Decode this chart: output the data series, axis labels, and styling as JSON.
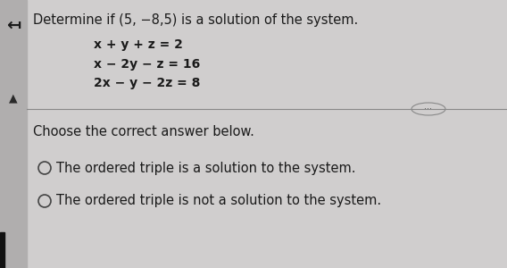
{
  "bg_color": "#d0cece",
  "left_panel_color": "#b0aeae",
  "title": "Determine if (5, −8,5) is a solution of the system.",
  "equations": [
    "x + y + z = 2",
    "x − 2y − z = 16",
    "2x − y − 2z = 8"
  ],
  "choose_text": "Choose the correct answer below.",
  "option_a": "The ordered triple is a solution to the system.",
  "option_b": "The ordered triple is not a solution to the system.",
  "left_arrow": "↤",
  "up_arrow": "▲",
  "dots_label": "···",
  "title_fontsize": 10.5,
  "eq_fontsize": 10,
  "choose_fontsize": 10.5,
  "option_fontsize": 10.5
}
